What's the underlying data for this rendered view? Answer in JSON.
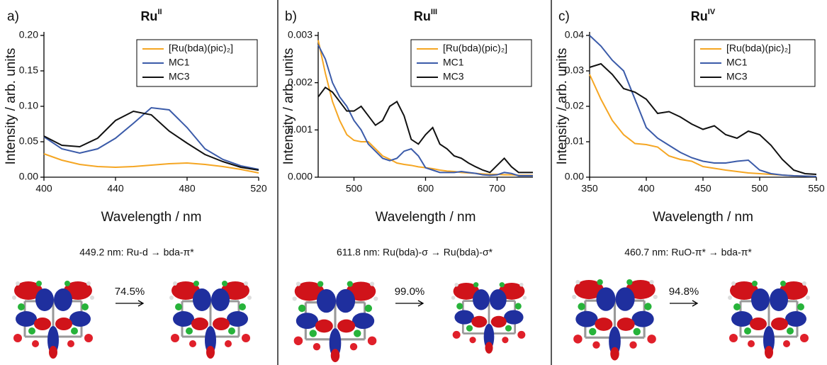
{
  "chart_data": [
    {
      "type": "line",
      "panel_label": "a)",
      "title": "Ru",
      "title_superscript": "II",
      "xlabel": "Wavelength / nm",
      "ylabel": "Intensity / arb. units",
      "x": [
        400,
        410,
        420,
        430,
        440,
        450,
        460,
        470,
        480,
        490,
        500,
        510,
        520
      ],
      "series": [
        {
          "name": "[Ru(bda)(pic)₂]",
          "color": "#f5a623",
          "values": [
            0.033,
            0.024,
            0.018,
            0.015,
            0.014,
            0.015,
            0.017,
            0.019,
            0.02,
            0.018,
            0.015,
            0.011,
            0.006
          ]
        },
        {
          "name": "MC1",
          "color": "#3b5ba9",
          "values": [
            0.057,
            0.04,
            0.034,
            0.04,
            0.055,
            0.076,
            0.098,
            0.095,
            0.07,
            0.04,
            0.025,
            0.016,
            0.011
          ]
        },
        {
          "name": "MC3",
          "color": "#111111",
          "values": [
            0.058,
            0.045,
            0.043,
            0.055,
            0.08,
            0.093,
            0.088,
            0.065,
            0.048,
            0.032,
            0.022,
            0.014,
            0.01
          ]
        }
      ],
      "xlim": [
        400,
        520
      ],
      "xticks": [
        400,
        440,
        480,
        520
      ],
      "ylim": [
        0,
        0.2
      ],
      "yticks": [
        {
          "value": 0,
          "label": "0.00"
        },
        {
          "value": 0.05,
          "label": "0.05"
        },
        {
          "value": 0.1,
          "label": "0.10"
        },
        {
          "value": 0.15,
          "label": "0.15"
        },
        {
          "value": 0.2,
          "label": "0.20"
        }
      ],
      "legend": "upper right",
      "transition": "449.2 nm: Ru-d → bda-π*",
      "weight": "74.5%"
    },
    {
      "type": "line",
      "panel_label": "b)",
      "title": "Ru",
      "title_superscript": "III",
      "xlabel": "Wavelength / nm",
      "ylabel": "Intensity / arb. units",
      "x": [
        450,
        460,
        470,
        480,
        490,
        500,
        510,
        520,
        530,
        540,
        550,
        560,
        570,
        580,
        590,
        600,
        610,
        620,
        630,
        640,
        650,
        660,
        670,
        680,
        690,
        700,
        710,
        720,
        730,
        740,
        750
      ],
      "series": [
        {
          "name": "[Ru(bda)(pic)₂]",
          "color": "#f5a623",
          "values": [
            0.0029,
            0.0022,
            0.0016,
            0.0012,
            0.0009,
            0.00078,
            0.00075,
            0.00075,
            0.0006,
            0.00045,
            0.00038,
            0.0003,
            0.00027,
            0.00025,
            0.00022,
            0.0002,
            0.00018,
            0.00015,
            0.00013,
            0.00012,
            0.0001,
            9e-05,
            8e-05,
            7e-05,
            6e-05,
            6e-05,
            5e-05,
            5e-05,
            4e-05,
            4e-05,
            4e-05
          ]
        },
        {
          "name": "MC1",
          "color": "#3b5ba9",
          "values": [
            0.0028,
            0.0025,
            0.002,
            0.0017,
            0.0015,
            0.0012,
            0.001,
            0.0007,
            0.00055,
            0.0004,
            0.00035,
            0.0004,
            0.00055,
            0.0006,
            0.00045,
            0.0002,
            0.00015,
            0.0001,
            0.0001,
            0.0001,
            0.00012,
            0.0001,
            8e-05,
            5e-05,
            4e-05,
            5e-05,
            0.0001,
            8e-05,
            3e-05,
            3e-05,
            3e-05
          ]
        },
        {
          "name": "MC3",
          "color": "#111111",
          "values": [
            0.0017,
            0.0019,
            0.0018,
            0.0016,
            0.0014,
            0.0014,
            0.0015,
            0.0013,
            0.0011,
            0.0012,
            0.0015,
            0.0016,
            0.0013,
            0.0008,
            0.0007,
            0.0009,
            0.00105,
            0.0007,
            0.0006,
            0.00045,
            0.0004,
            0.0003,
            0.00022,
            0.00015,
            0.0001,
            0.00025,
            0.0004,
            0.00022,
            0.0001,
            0.0001,
            0.0001
          ]
        }
      ],
      "xlim": [
        450,
        750
      ],
      "xticks": [
        500,
        600,
        700
      ],
      "ylim": [
        0,
        0.003
      ],
      "yticks": [
        {
          "value": 0,
          "label": "0.000"
        },
        {
          "value": 0.001,
          "label": "0.001"
        },
        {
          "value": 0.002,
          "label": "0.002"
        },
        {
          "value": 0.003,
          "label": "0.003"
        }
      ],
      "legend": "upper right",
      "transition": "611.8 nm: Ru(bda)-σ → Ru(bda)-σ*",
      "weight": "99.0%"
    },
    {
      "type": "line",
      "panel_label": "c)",
      "title": "Ru",
      "title_superscript": "IV",
      "xlabel": "Wavelength / nm",
      "ylabel": "Intensity / arb. units",
      "x": [
        350,
        360,
        370,
        380,
        390,
        400,
        410,
        420,
        430,
        440,
        450,
        460,
        470,
        480,
        490,
        500,
        510,
        520,
        530,
        540,
        550
      ],
      "series": [
        {
          "name": "[Ru(bda)(pic)₂]",
          "color": "#f5a623",
          "values": [
            0.029,
            0.022,
            0.016,
            0.012,
            0.0095,
            0.0092,
            0.0085,
            0.006,
            0.005,
            0.0045,
            0.003,
            0.0025,
            0.002,
            0.0016,
            0.0012,
            0.001,
            0.0008,
            0.0006,
            0.0004,
            0.0003,
            0.0002
          ]
        },
        {
          "name": "MC1",
          "color": "#3b5ba9",
          "values": [
            0.04,
            0.037,
            0.033,
            0.03,
            0.022,
            0.014,
            0.011,
            0.009,
            0.007,
            0.0055,
            0.0045,
            0.004,
            0.004,
            0.0045,
            0.0048,
            0.002,
            0.001,
            0.0006,
            0.0004,
            0.0003,
            0.0002
          ]
        },
        {
          "name": "MC3",
          "color": "#111111",
          "values": [
            0.031,
            0.032,
            0.029,
            0.025,
            0.024,
            0.022,
            0.018,
            0.0185,
            0.017,
            0.015,
            0.0135,
            0.0145,
            0.012,
            0.011,
            0.013,
            0.012,
            0.009,
            0.005,
            0.002,
            0.001,
            0.0008
          ]
        }
      ],
      "xlim": [
        350,
        550
      ],
      "xticks": [
        350,
        400,
        450,
        500,
        550
      ],
      "ylim": [
        0,
        0.04
      ],
      "yticks": [
        {
          "value": 0,
          "label": "0.00"
        },
        {
          "value": 0.01,
          "label": "0.01"
        },
        {
          "value": 0.02,
          "label": "0.02"
        },
        {
          "value": 0.03,
          "label": "0.03"
        },
        {
          "value": 0.04,
          "label": "0.04"
        }
      ],
      "legend": "upper right",
      "transition": "460.7 nm: RuO-π* → bda-π*",
      "weight": "94.8%"
    }
  ]
}
